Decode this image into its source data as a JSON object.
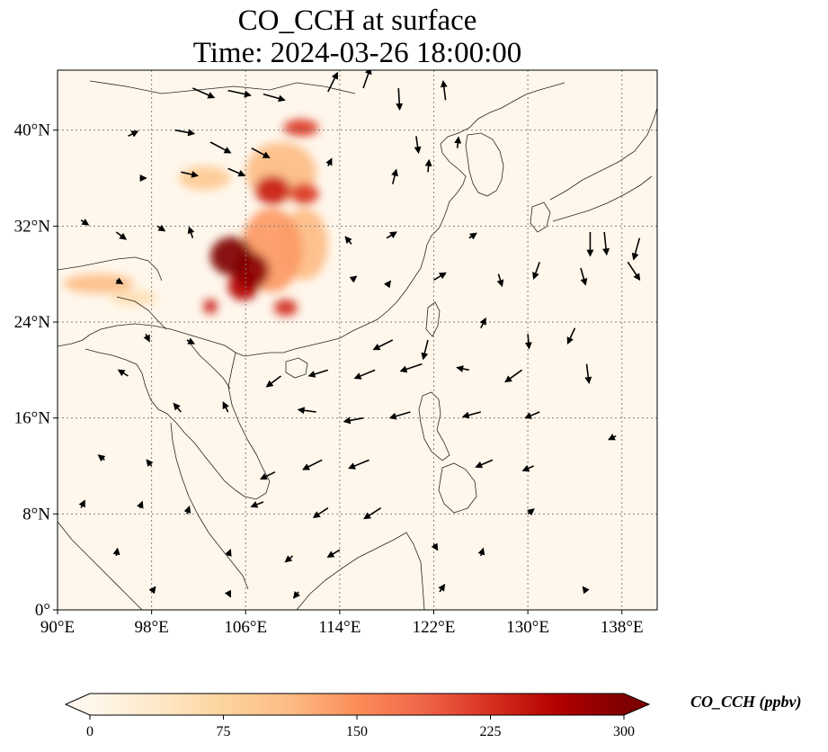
{
  "title": {
    "line1": "CO_CCH at surface",
    "line2": "Time: 2024-03-26 18:00:00"
  },
  "map": {
    "variable": "CO_CCH",
    "level": "surface",
    "lon_range": [
      90,
      141
    ],
    "lat_range": [
      0,
      45
    ],
    "gridlines": "dotted",
    "lon_ticks": [
      "90°E",
      "98°E",
      "106°E",
      "114°E",
      "122°E",
      "130°E",
      "138°E"
    ],
    "lat_ticks": [
      "0°",
      "8°N",
      "16°N",
      "24°N",
      "32°N",
      "40°N"
    ]
  },
  "colorbar": {
    "label": "CO_CCH (ppbv)",
    "ticks": [
      "0",
      "75",
      "150",
      "225",
      "300"
    ],
    "min": 0,
    "max": 300,
    "extend": "both",
    "colormap": "OrRd",
    "colors": [
      "#fff7ec",
      "#fee8c8",
      "#fdd49e",
      "#fdbb84",
      "#fc8d59",
      "#ef6548",
      "#d7301f",
      "#b30000",
      "#7f0000"
    ]
  },
  "chart_data": {
    "type": "heatmap",
    "title": "CO_CCH at surface",
    "subtitle": "Time: 2024-03-26 18:00:00",
    "xlabel": "",
    "ylabel": "",
    "xlim": [
      90,
      141
    ],
    "ylim": [
      0,
      45
    ],
    "x_ticks": [
      90,
      98,
      106,
      114,
      122,
      130,
      138
    ],
    "y_ticks": [
      0,
      8,
      16,
      24,
      32,
      40
    ],
    "grid": true,
    "concentration_hotspots": [
      {
        "lon": 104.8,
        "lat": 29.5,
        "lon_radius": 1.8,
        "lat_radius": 1.6,
        "value": 300
      },
      {
        "lon": 106.5,
        "lat": 28.3,
        "lon_radius": 1.5,
        "lat_radius": 1.5,
        "value": 290
      },
      {
        "lon": 105.8,
        "lat": 27.0,
        "lon_radius": 1.3,
        "lat_radius": 1.2,
        "value": 260
      },
      {
        "lon": 103.0,
        "lat": 25.3,
        "lon_radius": 0.6,
        "lat_radius": 0.6,
        "value": 240
      },
      {
        "lon": 109.4,
        "lat": 25.2,
        "lon_radius": 1.0,
        "lat_radius": 0.7,
        "value": 230
      },
      {
        "lon": 108.3,
        "lat": 35.0,
        "lon_radius": 1.5,
        "lat_radius": 1.2,
        "value": 240
      },
      {
        "lon": 111.0,
        "lat": 34.7,
        "lon_radius": 1.2,
        "lat_radius": 0.9,
        "value": 220
      },
      {
        "lon": 110.7,
        "lat": 40.2,
        "lon_radius": 1.5,
        "lat_radius": 0.7,
        "value": 220
      },
      {
        "lon": 108.2,
        "lat": 30.0,
        "lon_radius": 2.6,
        "lat_radius": 3.5,
        "value": 140
      },
      {
        "lon": 111.0,
        "lat": 30.5,
        "lon_radius": 2.0,
        "lat_radius": 3.0,
        "value": 110
      },
      {
        "lon": 109.0,
        "lat": 36.5,
        "lon_radius": 3.0,
        "lat_radius": 2.5,
        "value": 110
      },
      {
        "lon": 102.5,
        "lat": 36.0,
        "lon_radius": 2.2,
        "lat_radius": 1.0,
        "value": 90
      },
      {
        "lon": 93.5,
        "lat": 27.2,
        "lon_radius": 3.0,
        "lat_radius": 0.8,
        "value": 110
      },
      {
        "lon": 96.5,
        "lat": 26.0,
        "lon_radius": 2.0,
        "lat_radius": 0.6,
        "value": 60
      }
    ],
    "wind_vectors": [
      {
        "lon": 101.5,
        "lat": 43.5,
        "u": 1.8,
        "v": -0.8
      },
      {
        "lon": 104.5,
        "lat": 43.3,
        "u": 1.9,
        "v": -0.4
      },
      {
        "lon": 107.5,
        "lat": 43.0,
        "u": 1.8,
        "v": -0.5
      },
      {
        "lon": 113.0,
        "lat": 43.2,
        "u": 0.8,
        "v": 1.6
      },
      {
        "lon": 116.0,
        "lat": 43.5,
        "u": 0.6,
        "v": 1.7
      },
      {
        "lon": 119.0,
        "lat": 43.5,
        "u": 0.1,
        "v": -1.8
      },
      {
        "lon": 123.0,
        "lat": 42.5,
        "u": -0.2,
        "v": 1.6
      },
      {
        "lon": 96.0,
        "lat": 39.5,
        "u": 0.8,
        "v": 0.4
      },
      {
        "lon": 100.0,
        "lat": 40.0,
        "u": 1.6,
        "v": -0.3
      },
      {
        "lon": 103.0,
        "lat": 39.0,
        "u": 1.7,
        "v": -0.9
      },
      {
        "lon": 106.5,
        "lat": 38.5,
        "u": 1.5,
        "v": -0.8
      },
      {
        "lon": 120.5,
        "lat": 39.5,
        "u": 0.2,
        "v": -1.4
      },
      {
        "lon": 124.0,
        "lat": 38.5,
        "u": 0.1,
        "v": 0.9
      },
      {
        "lon": 97.0,
        "lat": 36.0,
        "u": 0.5,
        "v": 0.0
      },
      {
        "lon": 100.5,
        "lat": 36.5,
        "u": 1.4,
        "v": -0.3
      },
      {
        "lon": 104.5,
        "lat": 36.8,
        "u": 1.4,
        "v": -0.6
      },
      {
        "lon": 113.0,
        "lat": 37.0,
        "u": 0.3,
        "v": 0.6
      },
      {
        "lon": 118.5,
        "lat": 35.5,
        "u": 0.3,
        "v": 1.2
      },
      {
        "lon": 121.5,
        "lat": 36.5,
        "u": 0.1,
        "v": 1.0
      },
      {
        "lon": 92.0,
        "lat": 32.5,
        "u": 0.6,
        "v": -0.4
      },
      {
        "lon": 95.0,
        "lat": 31.5,
        "u": 0.8,
        "v": -0.6
      },
      {
        "lon": 98.5,
        "lat": 32.0,
        "u": 0.6,
        "v": -0.4
      },
      {
        "lon": 101.5,
        "lat": 31.0,
        "u": -0.3,
        "v": 0.9
      },
      {
        "lon": 115.0,
        "lat": 30.5,
        "u": -0.5,
        "v": 0.6
      },
      {
        "lon": 118.0,
        "lat": 31.0,
        "u": 0.8,
        "v": 0.5
      },
      {
        "lon": 125.0,
        "lat": 31.0,
        "u": 0.6,
        "v": 0.4
      },
      {
        "lon": 135.3,
        "lat": 31.5,
        "u": 0.0,
        "v": -2.0
      },
      {
        "lon": 136.5,
        "lat": 31.5,
        "u": 0.2,
        "v": -1.9
      },
      {
        "lon": 139.5,
        "lat": 31.0,
        "u": -0.5,
        "v": -1.8
      },
      {
        "lon": 95.0,
        "lat": 27.5,
        "u": 0.5,
        "v": -0.3
      },
      {
        "lon": 115.0,
        "lat": 27.5,
        "u": 0.4,
        "v": 0.3
      },
      {
        "lon": 118.0,
        "lat": 27.0,
        "u": 0.3,
        "v": 0.4
      },
      {
        "lon": 122.0,
        "lat": 27.5,
        "u": 1.0,
        "v": 0.6
      },
      {
        "lon": 127.5,
        "lat": 28.0,
        "u": 0.3,
        "v": -1.0
      },
      {
        "lon": 131.0,
        "lat": 29.0,
        "u": -0.5,
        "v": -1.4
      },
      {
        "lon": 134.5,
        "lat": 28.5,
        "u": 0.4,
        "v": -1.4
      },
      {
        "lon": 138.5,
        "lat": 29.0,
        "u": 1.0,
        "v": -1.5
      },
      {
        "lon": 97.5,
        "lat": 23.0,
        "u": 0.3,
        "v": -0.6
      },
      {
        "lon": 101.0,
        "lat": 22.5,
        "u": 0.6,
        "v": -0.3
      },
      {
        "lon": 118.5,
        "lat": 22.5,
        "u": -1.6,
        "v": -0.8
      },
      {
        "lon": 121.5,
        "lat": 22.5,
        "u": -0.4,
        "v": -1.6
      },
      {
        "lon": 126.0,
        "lat": 23.5,
        "u": 0.4,
        "v": 0.8
      },
      {
        "lon": 130.0,
        "lat": 23.0,
        "u": 0.1,
        "v": -1.2
      },
      {
        "lon": 134.0,
        "lat": 23.5,
        "u": -0.6,
        "v": -1.3
      },
      {
        "lon": 96.0,
        "lat": 19.5,
        "u": -0.8,
        "v": 0.5
      },
      {
        "lon": 109.0,
        "lat": 19.5,
        "u": -1.2,
        "v": -0.9
      },
      {
        "lon": 113.0,
        "lat": 20.0,
        "u": -1.6,
        "v": -0.5
      },
      {
        "lon": 117.0,
        "lat": 20.0,
        "u": -1.7,
        "v": -0.7
      },
      {
        "lon": 121.0,
        "lat": 20.5,
        "u": -1.8,
        "v": -0.6
      },
      {
        "lon": 125.0,
        "lat": 20.0,
        "u": -1.0,
        "v": 0.2
      },
      {
        "lon": 129.5,
        "lat": 20.0,
        "u": -1.4,
        "v": -1.0
      },
      {
        "lon": 135.0,
        "lat": 20.5,
        "u": 0.2,
        "v": -1.6
      },
      {
        "lon": 100.5,
        "lat": 16.5,
        "u": -0.6,
        "v": 0.7
      },
      {
        "lon": 104.5,
        "lat": 16.5,
        "u": -0.4,
        "v": 0.8
      },
      {
        "lon": 112.0,
        "lat": 16.5,
        "u": -1.5,
        "v": 0.2
      },
      {
        "lon": 116.0,
        "lat": 16.0,
        "u": -1.6,
        "v": -0.3
      },
      {
        "lon": 120.0,
        "lat": 16.5,
        "u": -1.7,
        "v": -0.5
      },
      {
        "lon": 126.0,
        "lat": 16.5,
        "u": -1.5,
        "v": -0.4
      },
      {
        "lon": 131.0,
        "lat": 16.5,
        "u": -1.2,
        "v": -0.5
      },
      {
        "lon": 137.5,
        "lat": 14.5,
        "u": -0.6,
        "v": -0.3
      },
      {
        "lon": 94.0,
        "lat": 12.5,
        "u": -0.5,
        "v": 0.4
      },
      {
        "lon": 98.0,
        "lat": 12.0,
        "u": -0.4,
        "v": 0.5
      },
      {
        "lon": 108.5,
        "lat": 11.5,
        "u": -1.2,
        "v": -0.6
      },
      {
        "lon": 112.5,
        "lat": 12.5,
        "u": -1.6,
        "v": -0.8
      },
      {
        "lon": 116.5,
        "lat": 12.5,
        "u": -1.7,
        "v": -0.7
      },
      {
        "lon": 127.0,
        "lat": 12.5,
        "u": -1.4,
        "v": -0.6
      },
      {
        "lon": 130.5,
        "lat": 12.0,
        "u": -0.9,
        "v": -0.4
      },
      {
        "lon": 92.0,
        "lat": 8.5,
        "u": 0.3,
        "v": 0.6
      },
      {
        "lon": 97.0,
        "lat": 8.5,
        "u": 0.2,
        "v": 0.5
      },
      {
        "lon": 101.0,
        "lat": 8.0,
        "u": 0.2,
        "v": 0.6
      },
      {
        "lon": 107.5,
        "lat": 9.0,
        "u": -1.0,
        "v": -0.4
      },
      {
        "lon": 113.0,
        "lat": 8.5,
        "u": -1.2,
        "v": -0.8
      },
      {
        "lon": 117.5,
        "lat": 8.5,
        "u": -1.4,
        "v": -0.9
      },
      {
        "lon": 130.0,
        "lat": 8.0,
        "u": 0.5,
        "v": 0.4
      },
      {
        "lon": 95.0,
        "lat": 4.5,
        "u": 0.1,
        "v": 0.6
      },
      {
        "lon": 104.5,
        "lat": 4.5,
        "u": 0.2,
        "v": 0.5
      },
      {
        "lon": 110.0,
        "lat": 4.5,
        "u": -0.6,
        "v": -0.5
      },
      {
        "lon": 114.0,
        "lat": 5.0,
        "u": -1.0,
        "v": -0.6
      },
      {
        "lon": 122.0,
        "lat": 5.5,
        "u": 0.3,
        "v": -0.5
      },
      {
        "lon": 126.0,
        "lat": 4.5,
        "u": 0.2,
        "v": 0.6
      },
      {
        "lon": 98.0,
        "lat": 1.5,
        "u": 0.3,
        "v": 0.4
      },
      {
        "lon": 104.5,
        "lat": 1.5,
        "u": 0.2,
        "v": -0.4
      },
      {
        "lon": 110.5,
        "lat": 1.5,
        "u": -0.4,
        "v": -0.5
      },
      {
        "lon": 122.5,
        "lat": 1.5,
        "u": 0.4,
        "v": 0.6
      },
      {
        "lon": 135.0,
        "lat": 1.5,
        "u": -0.3,
        "v": 0.4
      }
    ]
  }
}
